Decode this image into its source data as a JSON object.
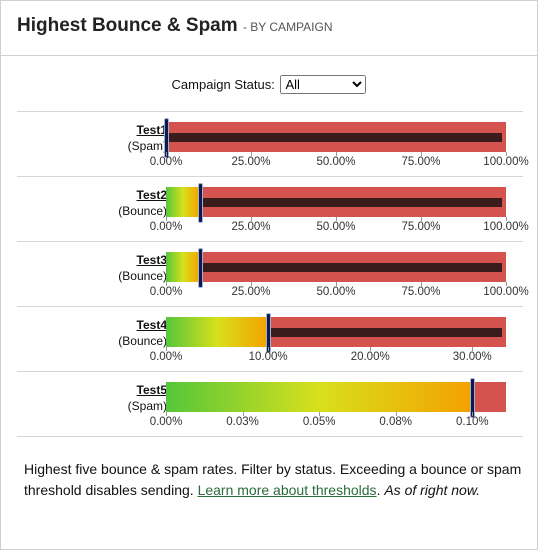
{
  "header": {
    "title": "Highest Bounce & Spam",
    "subtitle": "- BY CAMPAIGN"
  },
  "filter": {
    "label": "Campaign Status:",
    "selected": "All"
  },
  "chart_data": {
    "type": "bullet",
    "campaigns": [
      {
        "name": "Test1",
        "type": "(Spam)",
        "rate_pct": 0.0,
        "max": 100,
        "ticks": [
          "0.00%",
          "25.00%",
          "50.00%",
          "75.00%",
          "100.00%"
        ],
        "gradient": "linear-gradient(90deg,#55c63a,#d8e01c,#f4a100)",
        "fill_pct": 0
      },
      {
        "name": "Test2",
        "type": "(Bounce)",
        "rate_pct": 10.0,
        "max": 100,
        "ticks": [
          "0.00%",
          "25.00%",
          "50.00%",
          "75.00%",
          "100.00%"
        ],
        "gradient": "linear-gradient(90deg,#55c63a,#d8e01c,#f4a100)",
        "fill_pct": 10
      },
      {
        "name": "Test3",
        "type": "(Bounce)",
        "rate_pct": 10.0,
        "max": 100,
        "ticks": [
          "0.00%",
          "25.00%",
          "50.00%",
          "75.00%",
          "100.00%"
        ],
        "gradient": "linear-gradient(90deg,#55c63a,#d8e01c,#f4a100)",
        "fill_pct": 10
      },
      {
        "name": "Test4",
        "type": "(Bounce)",
        "rate_pct": 10.0,
        "max": 33.3,
        "ticks": [
          "0.00%",
          "10.00%",
          "20.00%",
          "30.00%"
        ],
        "gradient": "linear-gradient(90deg,#55c63a,#d8e01c,#f4a100)",
        "fill_pct": 10
      },
      {
        "name": "Test5",
        "type": "(Spam)",
        "rate_pct": 0.1,
        "max": 0.111,
        "ticks": [
          "0.00%",
          "0.03%",
          "0.05%",
          "0.08%",
          "0.10%"
        ],
        "gradient": "linear-gradient(90deg,#55c63a,#d8e01c,#f4a100)",
        "fill_pct": 0.1
      }
    ]
  },
  "footer": {
    "text": "Highest five bounce & spam rates. Filter by status. Exceeding a bounce or spam threshold disables sending. ",
    "link": "Learn more about thresholds",
    "after_link": ". ",
    "as_of": "As of right now."
  }
}
